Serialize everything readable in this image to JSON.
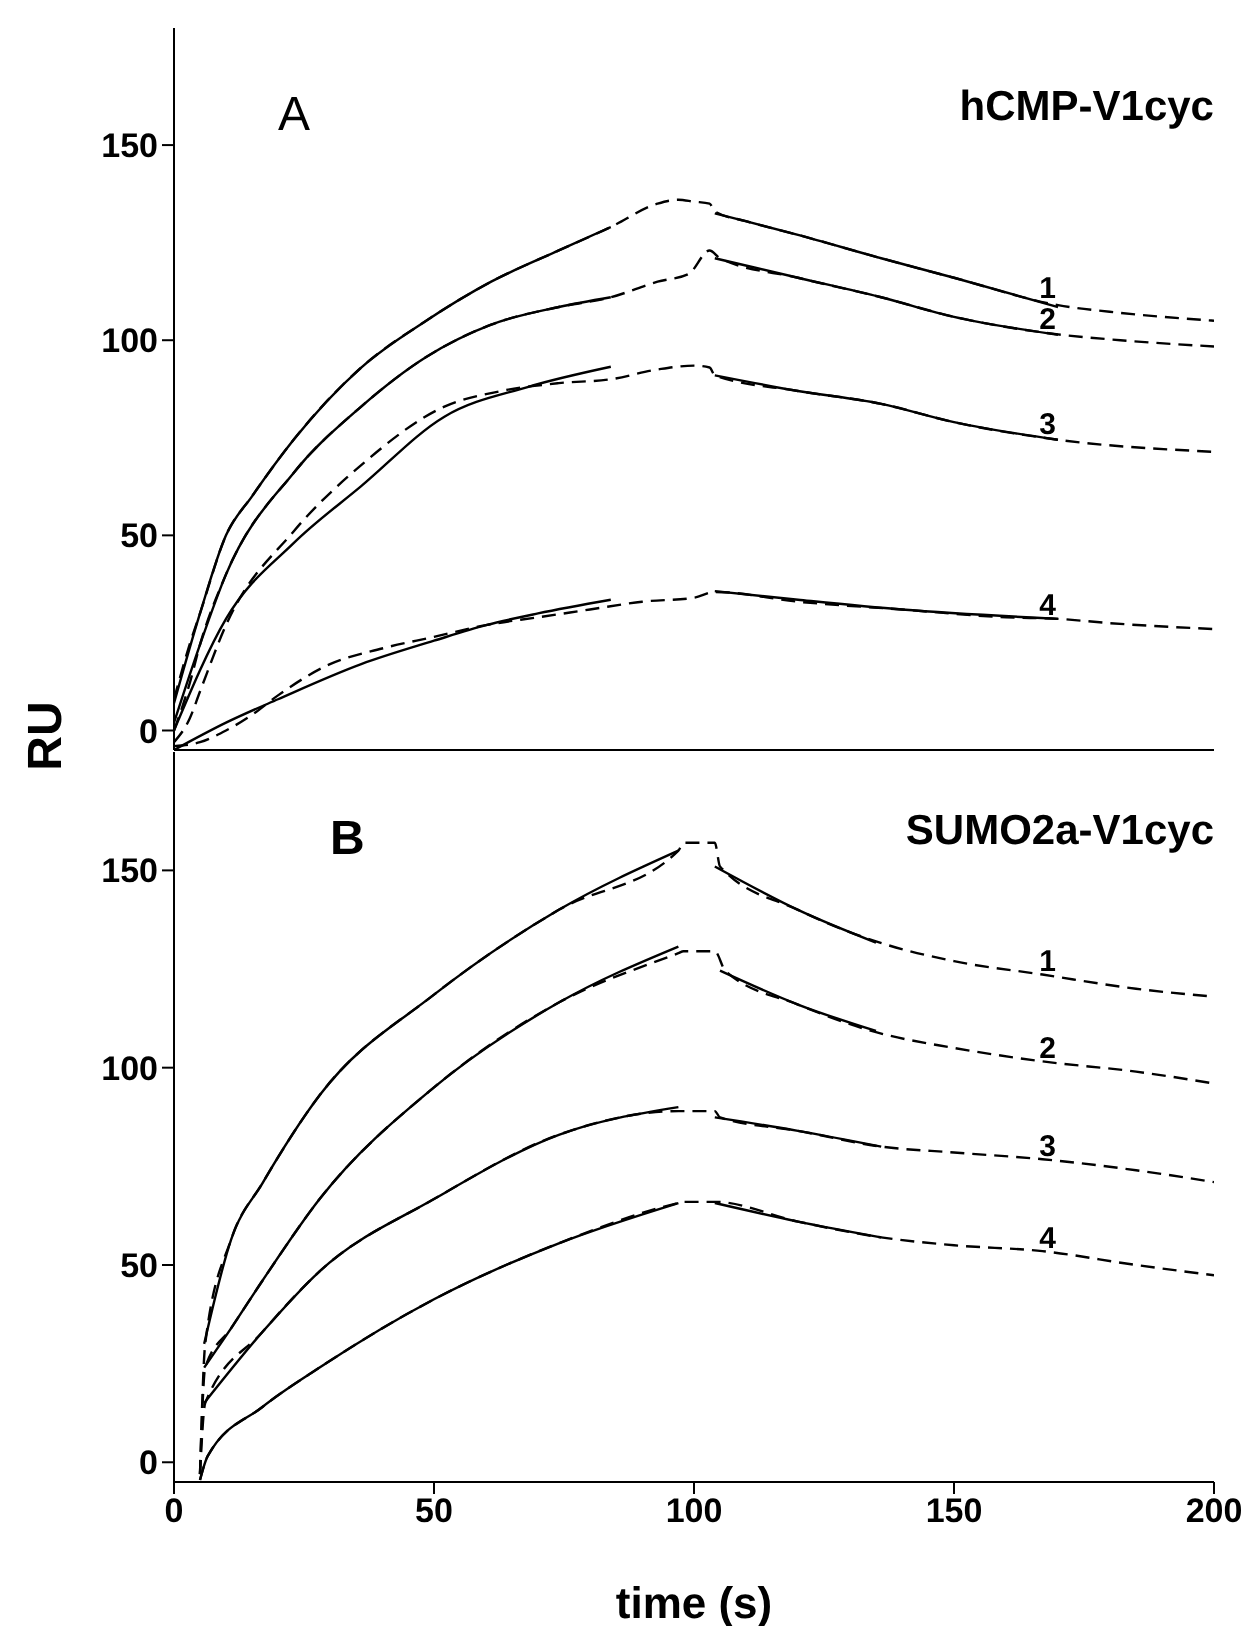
{
  "chart_data": [
    {
      "type": "line",
      "title": "hCMP-V1cyc",
      "ylabel": "RU",
      "annotations": [
        "A"
      ],
      "xlim": [
        0,
        200
      ],
      "ylim": [
        -5,
        180
      ],
      "yticks": [
        0,
        50,
        100,
        150
      ],
      "tick_labels": "y",
      "marker": "none",
      "series": [
        {
          "name": "1",
          "color": "#000000",
          "line_style": "dashed",
          "x": [
            0,
            3,
            5,
            10,
            15,
            23,
            36,
            48.5,
            61,
            74,
            84,
            93,
            97,
            100,
            103,
            104,
            110,
            120,
            136,
            150,
            170,
            182,
            200
          ],
          "values": [
            8,
            22,
            30,
            50,
            60,
            74.5,
            93,
            105,
            115,
            123,
            129,
            135,
            136,
            135.5,
            135,
            133,
            130.5,
            127,
            121,
            116,
            109,
            107,
            105
          ]
        },
        {
          "color": "#000000",
          "line_style": "solid",
          "x": [
            0,
            5,
            10,
            15,
            23,
            36,
            48.5,
            61,
            74,
            84,
            94,
            104,
            120,
            136,
            150,
            170
          ],
          "values": [
            7,
            30,
            50,
            60,
            74.5,
            93,
            105,
            115,
            123,
            129,
            null,
            132.5,
            127,
            121,
            116,
            108.5
          ]
        },
        {
          "name": "2",
          "color": "#000000",
          "line_style": "dashed",
          "x": [
            0,
            3,
            5,
            10,
            23,
            36,
            48.5,
            61,
            74,
            84,
            93,
            99,
            103,
            105,
            120,
            136,
            150,
            170,
            182,
            200
          ],
          "values": [
            0,
            12,
            22,
            40,
            66,
            83,
            95.7,
            104,
            108.5,
            111,
            115,
            117,
            123,
            121,
            116,
            111,
            106,
            101.5,
            100,
            98.4
          ]
        },
        {
          "color": "#000000",
          "line_style": "solid",
          "x": [
            0,
            5,
            10,
            23,
            36,
            48.5,
            61,
            74,
            84,
            94,
            104,
            120,
            136,
            150,
            170
          ],
          "values": [
            2,
            22,
            40,
            66,
            83,
            95.7,
            104,
            108.5,
            111,
            null,
            121,
            116,
            111,
            106,
            101.4
          ]
        },
        {
          "name": "3",
          "color": "#000000",
          "line_style": "dashed",
          "x": [
            0,
            3,
            5,
            10,
            23,
            36,
            52,
            63,
            74,
            84,
            93,
            100,
            103,
            104,
            120,
            136,
            150,
            170,
            200
          ],
          "values": [
            -3,
            3,
            10,
            27,
            51,
            68,
            83,
            87,
            89,
            90,
            92.5,
            93.5,
            93,
            91,
            87,
            83.7,
            79,
            74.5,
            71.4
          ]
        },
        {
          "color": "#000000",
          "line_style": "solid",
          "x": [
            0,
            10,
            23,
            36,
            52,
            68,
            84,
            94,
            104,
            120,
            136,
            150,
            170
          ],
          "values": [
            0,
            28.6,
            48,
            62.6,
            80.4,
            88,
            93.2,
            null,
            91,
            87,
            83.7,
            79,
            74.5
          ]
        },
        {
          "name": "4",
          "color": "#000000",
          "line_style": "dashed",
          "x": [
            0,
            5,
            10,
            15,
            20,
            30,
            40,
            50,
            60,
            70,
            80,
            90,
            100,
            104,
            120,
            140,
            160,
            170,
            180,
            200
          ],
          "values": [
            -4,
            -3,
            0,
            4,
            9,
            17,
            21,
            24,
            27,
            29,
            31,
            33,
            34,
            35.5,
            33,
            31,
            29,
            28.6,
            27.5,
            26
          ]
        },
        {
          "color": "#000000",
          "line_style": "solid",
          "x": [
            0,
            10,
            20,
            36,
            50,
            60,
            70,
            84,
            94,
            104,
            120,
            140,
            170
          ],
          "values": [
            -5,
            2,
            8,
            17,
            23,
            27,
            30,
            33.5,
            null,
            35.7,
            33.5,
            31,
            28.6
          ]
        }
      ]
    },
    {
      "type": "line",
      "title": "SUMO2a-V1cyc",
      "xlabel": "time (s)",
      "annotations": [
        "B"
      ],
      "xlim": [
        0,
        200
      ],
      "xticks": [
        0,
        50,
        100,
        150,
        200
      ],
      "ylim": [
        -5,
        180
      ],
      "yticks": [
        0,
        50,
        100,
        150
      ],
      "marker": "none",
      "series": [
        {
          "name": "1",
          "color": "#000000",
          "line_style": "dashed",
          "x": [
            5,
            6,
            11,
            17,
            28,
            50,
            74,
            97,
            98,
            104,
            105,
            120,
            135,
            150,
            167,
            185,
            200
          ],
          "values": [
            -3,
            30,
            56.5,
            70.7,
            93,
            118.5,
            140,
            155,
            157,
            157,
            151,
            140,
            132,
            127,
            123.6,
            120,
            118
          ]
        },
        {
          "color": "#000000",
          "line_style": "solid",
          "x": [
            5.8,
            11,
            17,
            28,
            50,
            74,
            97,
            100,
            104,
            120,
            135
          ],
          "values": [
            30,
            56.5,
            70.7,
            93,
            118.5,
            140,
            155,
            null,
            151,
            140,
            131.7
          ]
        },
        {
          "name": "2",
          "color": "#000000",
          "line_style": "dashed",
          "x": [
            5,
            6,
            11,
            17,
            28,
            50,
            74,
            97,
            98,
            104,
            106,
            120,
            135,
            150,
            167,
            185,
            200
          ],
          "values": [
            -3,
            24,
            34,
            46,
            66.7,
            95,
            116.5,
            129,
            129.5,
            129.5,
            124.6,
            116,
            109,
            105,
            101.6,
            99,
            96
          ]
        },
        {
          "color": "#000000",
          "line_style": "solid",
          "x": [
            5.8,
            11,
            17,
            28,
            50,
            74,
            97,
            100,
            105,
            120,
            135
          ],
          "values": [
            24,
            34,
            46,
            66.7,
            95,
            116.5,
            130.7,
            null,
            124.6,
            116,
            109.3
          ]
        },
        {
          "name": "3",
          "color": "#000000",
          "line_style": "dashed",
          "x": [
            5,
            6,
            17,
            28,
            50,
            74,
            97,
            98,
            104,
            105,
            120,
            136,
            150,
            167,
            185,
            200
          ],
          "values": [
            -3,
            15,
            33,
            48.4,
            66.7,
            83,
            89,
            89,
            89,
            87.4,
            84,
            80,
            78.5,
            76.8,
            74,
            71
          ]
        },
        {
          "color": "#000000",
          "line_style": "solid",
          "x": [
            5.8,
            17,
            28,
            50,
            74,
            97,
            100,
            104,
            120,
            136
          ],
          "values": [
            15,
            33,
            48.4,
            66.7,
            83,
            90,
            null,
            87.4,
            84,
            80
          ]
        },
        {
          "name": "4",
          "color": "#000000",
          "line_style": "dashed",
          "x": [
            5,
            6.5,
            17,
            28,
            50,
            74,
            97,
            98,
            104,
            120,
            136,
            150,
            167,
            185,
            200
          ],
          "values": [
            -4.5,
            1.6,
            14,
            24,
            41.3,
            55.5,
            65.7,
            66,
            66,
            61,
            57,
            55,
            53.5,
            50,
            47.4
          ]
        },
        {
          "color": "#000000",
          "line_style": "solid",
          "x": [
            5,
            6.5,
            17,
            28,
            50,
            74,
            97,
            100,
            104,
            120,
            136
          ],
          "values": [
            -4.5,
            1.6,
            14,
            24,
            41.3,
            55.5,
            65.7,
            null,
            65.7,
            61,
            57
          ]
        }
      ]
    }
  ]
}
